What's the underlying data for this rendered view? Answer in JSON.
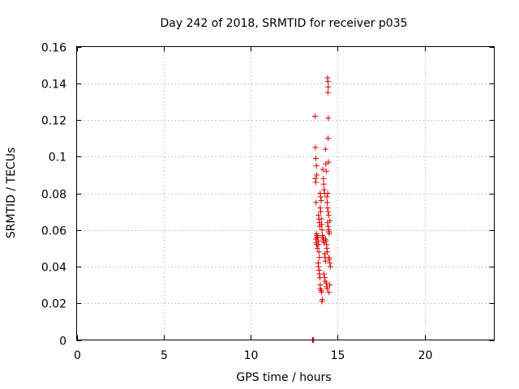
{
  "chart_data": {
    "type": "scatter",
    "title": "Day 242 of 2018, SRMTID for receiver p035",
    "xlabel": "GPS time / hours",
    "ylabel": "SRMTID / TECUs",
    "xlim": [
      0,
      24
    ],
    "ylim": [
      0,
      0.16
    ],
    "xticks": [
      0,
      5,
      10,
      15,
      20
    ],
    "xtick_labels": [
      "0",
      "5",
      "10",
      "15",
      "20"
    ],
    "yticks": [
      0,
      0.02,
      0.04,
      0.06,
      0.08,
      0.1,
      0.12,
      0.14,
      0.16
    ],
    "ytick_labels": [
      "0",
      "0.02",
      "0.04",
      "0.06",
      "0.08",
      "0.1",
      "0.12",
      "0.14",
      "0.16"
    ],
    "grid": true,
    "marker": "+",
    "marker_color": "#dd0000",
    "series": [
      {
        "name": "SRMTID",
        "x": [
          13.55,
          13.58,
          13.6,
          13.62,
          13.7,
          13.72,
          13.75,
          13.78,
          13.8,
          13.72,
          13.74,
          13.76,
          13.78,
          13.8,
          13.82,
          13.75,
          13.77,
          13.8,
          13.83,
          13.85,
          13.88,
          13.9,
          13.92,
          13.95,
          13.88,
          13.9,
          13.93,
          13.95,
          13.98,
          14.0,
          13.9,
          13.92,
          13.95,
          13.98,
          14.0,
          14.02,
          14.05,
          14.0,
          14.03,
          14.06,
          14.08,
          14.1,
          14.12,
          14.0,
          14.05,
          14.08,
          14.1,
          14.12,
          14.15,
          14.18,
          14.2,
          14.22,
          14.25,
          14.15,
          14.18,
          14.2,
          14.22,
          14.25,
          14.28,
          14.3,
          14.2,
          14.25,
          14.28,
          14.3,
          14.32,
          14.35,
          14.38,
          14.4,
          14.42,
          14.3,
          14.33,
          14.36,
          14.38,
          14.4,
          14.35,
          14.38,
          14.4,
          14.42,
          14.45,
          14.48,
          14.5,
          14.52,
          14.55,
          14.45,
          14.48,
          14.5,
          14.52,
          14.55,
          14.58,
          14.5,
          14.55,
          14.42,
          14.44,
          14.46,
          14.44,
          14.46,
          14.45,
          14.47,
          14.43
        ],
        "y": [
          0.0,
          0.0,
          0.0,
          0.0,
          0.122,
          0.105,
          0.099,
          0.095,
          0.09,
          0.088,
          0.086,
          0.075,
          0.058,
          0.057,
          0.056,
          0.055,
          0.053,
          0.052,
          0.05,
          0.056,
          0.054,
          0.052,
          0.048,
          0.045,
          0.042,
          0.04,
          0.038,
          0.036,
          0.034,
          0.03,
          0.068,
          0.066,
          0.064,
          0.062,
          0.08,
          0.078,
          0.076,
          0.072,
          0.07,
          0.066,
          0.063,
          0.06,
          0.057,
          0.028,
          0.027,
          0.026,
          0.021,
          0.022,
          0.093,
          0.088,
          0.085,
          0.082,
          0.08,
          0.056,
          0.055,
          0.054,
          0.053,
          0.047,
          0.045,
          0.043,
          0.036,
          0.034,
          0.032,
          0.104,
          0.096,
          0.092,
          0.078,
          0.075,
          0.072,
          0.055,
          0.054,
          0.052,
          0.05,
          0.048,
          0.031,
          0.029,
          0.028,
          0.064,
          0.062,
          0.06,
          0.059,
          0.058,
          0.065,
          0.07,
          0.068,
          0.045,
          0.044,
          0.042,
          0.04,
          0.026,
          0.03,
          0.143,
          0.141,
          0.138,
          0.135,
          0.121,
          0.11,
          0.097,
          0.08
        ]
      }
    ]
  }
}
